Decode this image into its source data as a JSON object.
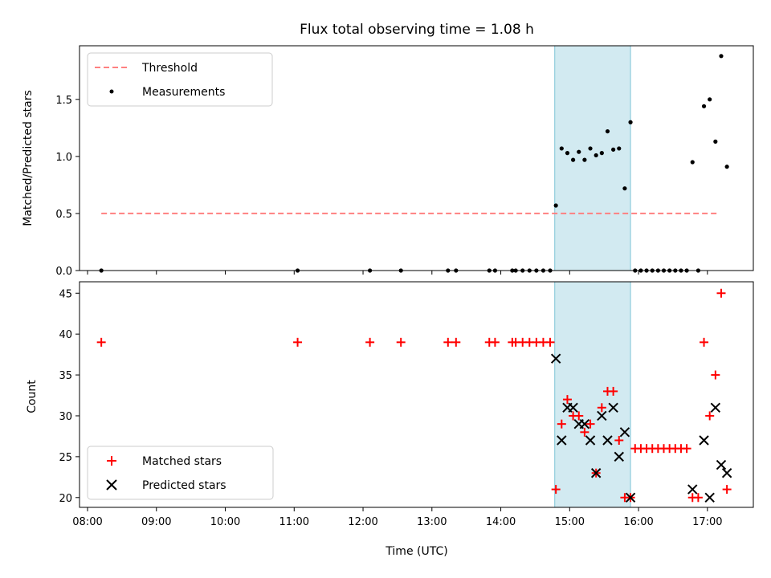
{
  "chart_data": [
    {
      "type": "scatter",
      "title": "Flux total observing time = 1.08 h",
      "ylabel": "Matched/Predicted stars",
      "xlabel": "",
      "x_ticks": [
        "08:00",
        "09:00",
        "10:00",
        "11:00",
        "12:00",
        "13:00",
        "14:00",
        "15:00",
        "16:00",
        "17:00"
      ],
      "xlim": [
        "07:53",
        "17:40"
      ],
      "ylim": [
        0,
        1.97
      ],
      "y_ticks": [
        "0.0",
        "0.5",
        "1.0",
        "1.5"
      ],
      "highlight_band": {
        "x_start": "14:47",
        "x_end": "15:53",
        "color": "#add8e6"
      },
      "legend": {
        "placement": "top-left",
        "entries": [
          "Threshold",
          "Measurements"
        ]
      },
      "series": [
        {
          "name": "Threshold",
          "style": "dashed-line",
          "color": "#ff8080",
          "points": [
            [
              "08:12",
              0.5
            ],
            [
              "17:10",
              0.5
            ]
          ]
        },
        {
          "name": "Measurements",
          "style": "dot",
          "color": "#000000",
          "points": [
            [
              "08:12",
              0.0
            ],
            [
              "11:03",
              0.0
            ],
            [
              "12:06",
              0.0
            ],
            [
              "12:33",
              0.0
            ],
            [
              "13:14",
              0.0
            ],
            [
              "13:21",
              0.0
            ],
            [
              "13:50",
              0.0
            ],
            [
              "13:55",
              0.0
            ],
            [
              "14:10",
              0.0
            ],
            [
              "14:13",
              0.0
            ],
            [
              "14:19",
              0.0
            ],
            [
              "14:25",
              0.0
            ],
            [
              "14:31",
              0.0
            ],
            [
              "14:37",
              0.0
            ],
            [
              "14:43",
              0.0
            ],
            [
              "14:48",
              0.57
            ],
            [
              "14:53",
              1.07
            ],
            [
              "14:58",
              1.03
            ],
            [
              "15:03",
              0.97
            ],
            [
              "15:08",
              1.04
            ],
            [
              "15:13",
              0.97
            ],
            [
              "15:18",
              1.07
            ],
            [
              "15:23",
              1.01
            ],
            [
              "15:28",
              1.03
            ],
            [
              "15:33",
              1.22
            ],
            [
              "15:38",
              1.06
            ],
            [
              "15:43",
              1.07
            ],
            [
              "15:48",
              0.72
            ],
            [
              "15:53",
              1.3
            ],
            [
              "15:57",
              0.0
            ],
            [
              "16:02",
              0.0
            ],
            [
              "16:07",
              0.0
            ],
            [
              "16:12",
              0.0
            ],
            [
              "16:17",
              0.0
            ],
            [
              "16:22",
              0.0
            ],
            [
              "16:27",
              0.0
            ],
            [
              "16:32",
              0.0
            ],
            [
              "16:37",
              0.0
            ],
            [
              "16:42",
              0.0
            ],
            [
              "16:52",
              0.0
            ],
            [
              "16:47",
              0.95
            ],
            [
              "16:57",
              1.44
            ],
            [
              "17:02",
              1.5
            ],
            [
              "17:07",
              1.13
            ],
            [
              "17:12",
              1.88
            ],
            [
              "17:17",
              0.91
            ]
          ]
        }
      ]
    },
    {
      "type": "scatter",
      "title": "",
      "ylabel": "Count",
      "xlabel": "Time (UTC)",
      "x_ticks": [
        "08:00",
        "09:00",
        "10:00",
        "11:00",
        "12:00",
        "13:00",
        "14:00",
        "15:00",
        "16:00",
        "17:00"
      ],
      "xlim": [
        "07:53",
        "17:40"
      ],
      "ylim": [
        18.8,
        46.4
      ],
      "y_ticks": [
        "20",
        "25",
        "30",
        "35",
        "40",
        "45"
      ],
      "highlight_band": {
        "x_start": "14:47",
        "x_end": "15:53",
        "color": "#add8e6"
      },
      "legend": {
        "placement": "bottom-left",
        "entries": [
          "Matched stars",
          "Predicted stars"
        ]
      },
      "series": [
        {
          "name": "Matched stars",
          "marker": "plus",
          "color": "#ff0000",
          "points": [
            [
              "08:12",
              39
            ],
            [
              "11:03",
              39
            ],
            [
              "12:06",
              39
            ],
            [
              "12:33",
              39
            ],
            [
              "13:14",
              39
            ],
            [
              "13:21",
              39
            ],
            [
              "13:50",
              39
            ],
            [
              "13:55",
              39
            ],
            [
              "14:10",
              39
            ],
            [
              "14:13",
              39
            ],
            [
              "14:19",
              39
            ],
            [
              "14:25",
              39
            ],
            [
              "14:31",
              39
            ],
            [
              "14:37",
              39
            ],
            [
              "14:43",
              39
            ],
            [
              "14:48",
              21
            ],
            [
              "14:53",
              29
            ],
            [
              "14:58",
              32
            ],
            [
              "15:03",
              30
            ],
            [
              "15:08",
              30
            ],
            [
              "15:13",
              28
            ],
            [
              "15:18",
              29
            ],
            [
              "15:23",
              23
            ],
            [
              "15:28",
              31
            ],
            [
              "15:33",
              33
            ],
            [
              "15:38",
              33
            ],
            [
              "15:43",
              27
            ],
            [
              "15:48",
              20
            ],
            [
              "15:53",
              20
            ],
            [
              "15:57",
              26
            ],
            [
              "16:02",
              26
            ],
            [
              "16:07",
              26
            ],
            [
              "16:12",
              26
            ],
            [
              "16:17",
              26
            ],
            [
              "16:22",
              26
            ],
            [
              "16:27",
              26
            ],
            [
              "16:32",
              26
            ],
            [
              "16:37",
              26
            ],
            [
              "16:42",
              26
            ],
            [
              "16:47",
              20
            ],
            [
              "16:52",
              20
            ],
            [
              "16:57",
              39
            ],
            [
              "17:02",
              30
            ],
            [
              "17:07",
              35
            ],
            [
              "17:12",
              45
            ],
            [
              "17:17",
              21
            ]
          ]
        },
        {
          "name": "Predicted stars",
          "marker": "x",
          "color": "#000000",
          "points": [
            [
              "14:48",
              37
            ],
            [
              "14:53",
              27
            ],
            [
              "14:58",
              31
            ],
            [
              "15:03",
              31
            ],
            [
              "15:08",
              29
            ],
            [
              "15:13",
              29
            ],
            [
              "15:18",
              27
            ],
            [
              "15:23",
              23
            ],
            [
              "15:28",
              30
            ],
            [
              "15:38",
              31
            ],
            [
              "15:33",
              27
            ],
            [
              "15:43",
              25
            ],
            [
              "15:48",
              28
            ],
            [
              "15:53",
              20
            ],
            [
              "16:47",
              21
            ],
            [
              "16:57",
              27
            ],
            [
              "17:02",
              20
            ],
            [
              "17:07",
              31
            ],
            [
              "17:12",
              24
            ],
            [
              "17:17",
              23
            ]
          ]
        }
      ]
    }
  ]
}
